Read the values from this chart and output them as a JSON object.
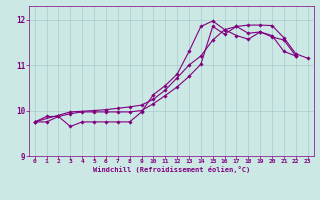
{
  "xlabel": "Windchill (Refroidissement éolien,°C)",
  "ylabel": "",
  "xlim": [
    -0.5,
    23.5
  ],
  "ylim": [
    9.0,
    12.3
  ],
  "yticks": [
    9,
    10,
    11,
    12
  ],
  "xticks": [
    0,
    1,
    2,
    3,
    4,
    5,
    6,
    7,
    8,
    9,
    10,
    11,
    12,
    13,
    14,
    15,
    16,
    17,
    18,
    19,
    20,
    21,
    22,
    23
  ],
  "bg_color": "#cce8e4",
  "line_color": "#800080",
  "grid_color": "#aacccc",
  "lines": [
    {
      "x": [
        0,
        1,
        2,
        3,
        4,
        5,
        6,
        7,
        8,
        9,
        10,
        11,
        12,
        13,
        14,
        15,
        16,
        17,
        18,
        19,
        20,
        21,
        22
      ],
      "y": [
        9.75,
        9.87,
        9.87,
        9.93,
        9.97,
        9.97,
        9.97,
        9.97,
        9.97,
        10.0,
        10.15,
        10.33,
        10.52,
        10.75,
        11.02,
        11.85,
        11.68,
        11.85,
        11.7,
        11.73,
        11.65,
        11.3,
        11.2
      ]
    },
    {
      "x": [
        0,
        1,
        2,
        3,
        4,
        5,
        6,
        7,
        8,
        9,
        10,
        11,
        12,
        13,
        14,
        15,
        16,
        17,
        18,
        19,
        20,
        21,
        22
      ],
      "y": [
        9.75,
        9.75,
        9.87,
        9.65,
        9.75,
        9.75,
        9.75,
        9.75,
        9.75,
        9.97,
        10.35,
        10.55,
        10.8,
        11.3,
        11.85,
        11.97,
        11.78,
        11.65,
        11.57,
        11.73,
        11.62,
        11.55,
        11.2
      ]
    },
    {
      "x": [
        0,
        3,
        5,
        6,
        7,
        8,
        9,
        10,
        11,
        12,
        13,
        14,
        15,
        16,
        17,
        18,
        19,
        20,
        21,
        22,
        23
      ],
      "y": [
        9.75,
        9.97,
        10.0,
        10.02,
        10.05,
        10.08,
        10.12,
        10.25,
        10.45,
        10.72,
        11.0,
        11.2,
        11.55,
        11.78,
        11.85,
        11.88,
        11.88,
        11.87,
        11.6,
        11.25,
        11.15
      ]
    }
  ]
}
